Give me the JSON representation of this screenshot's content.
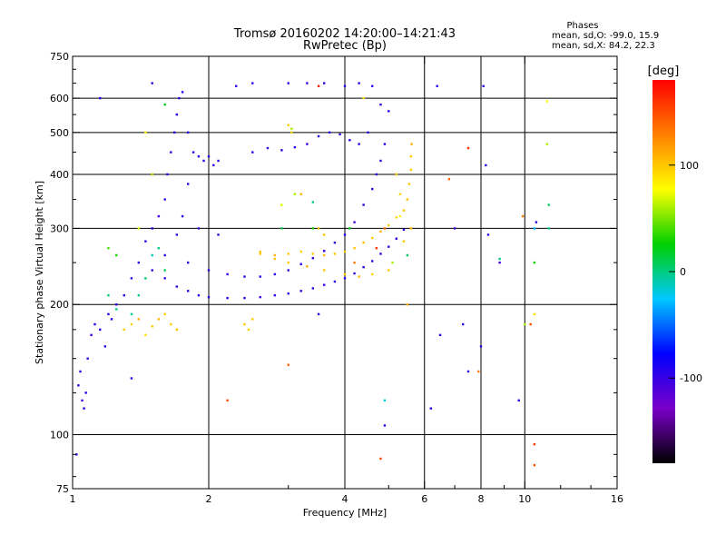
{
  "chart_data": {
    "type": "scatter",
    "title": "Tromsø 20160202 14:20:00–14:21:43",
    "subtitle": "RwPretec (Bp)",
    "xlabel": "Frequency [MHz]",
    "ylabel": "Stationary phase Virtual Height [km]",
    "x_scale": "log",
    "y_scale": "log",
    "xlim": [
      1,
      16
    ],
    "ylim": [
      75,
      750
    ],
    "x_ticks": [
      1,
      2,
      4,
      6,
      8,
      10,
      16
    ],
    "y_ticks": [
      75,
      100,
      200,
      300,
      400,
      500,
      600,
      750
    ],
    "x_gridlines": [
      2,
      4,
      6,
      8,
      10
    ],
    "y_gridlines": [
      100,
      200,
      300,
      400,
      500,
      600
    ],
    "stats": {
      "heading": "Phases",
      "line1": "mean, sd,O:  -99.0, 15.9",
      "line2": "mean, sd,X:   84.2, 22.3"
    },
    "colorbar": {
      "label": "[deg]",
      "min": -180,
      "max": 180,
      "ticks": [
        -100,
        0,
        100
      ],
      "colors": [
        "#000000",
        "#7a00c8",
        "#0000ff",
        "#00c8ff",
        "#00d000",
        "#ffff00",
        "#ff8000",
        "#ff0000"
      ]
    },
    "series": [
      {
        "points": [
          [
            1.03,
            130,
            -100
          ],
          [
            1.04,
            140,
            -98
          ],
          [
            1.05,
            120,
            -105
          ],
          [
            1.06,
            115,
            -100
          ],
          [
            1.07,
            125,
            -95
          ],
          [
            1.08,
            150,
            -100
          ],
          [
            1.1,
            170,
            -102
          ],
          [
            1.12,
            180,
            -99
          ],
          [
            1.15,
            175,
            -97
          ],
          [
            1.18,
            160,
            -100
          ],
          [
            1.2,
            190,
            -100
          ],
          [
            1.22,
            185,
            -96
          ],
          [
            1.25,
            200,
            -101
          ],
          [
            1.3,
            210,
            -100
          ],
          [
            1.35,
            230,
            -99
          ],
          [
            1.4,
            250,
            -100
          ],
          [
            1.45,
            280,
            -98
          ],
          [
            1.5,
            300,
            -100
          ],
          [
            1.55,
            320,
            -101
          ],
          [
            1.6,
            350,
            -100
          ],
          [
            1.62,
            400,
            -99
          ],
          [
            1.65,
            450,
            -100
          ],
          [
            1.68,
            500,
            -102
          ],
          [
            1.7,
            550,
            -98
          ],
          [
            1.72,
            600,
            -100
          ],
          [
            1.75,
            620,
            -100
          ],
          [
            1.8,
            500,
            -99
          ],
          [
            1.85,
            450,
            -101
          ],
          [
            1.9,
            440,
            -100
          ],
          [
            1.95,
            430,
            -97
          ],
          [
            2.0,
            440,
            -100
          ],
          [
            2.05,
            420,
            -100
          ],
          [
            2.1,
            430,
            -99
          ],
          [
            1.5,
            240,
            -100
          ],
          [
            1.6,
            230,
            -101
          ],
          [
            1.7,
            220,
            -100
          ],
          [
            1.8,
            215,
            -98
          ],
          [
            1.9,
            210,
            -100
          ],
          [
            2.0,
            208,
            -100
          ],
          [
            2.2,
            207,
            -99
          ],
          [
            2.4,
            207,
            -100
          ],
          [
            2.6,
            208,
            -101
          ],
          [
            2.8,
            210,
            -100
          ],
          [
            3.0,
            212,
            -99
          ],
          [
            3.2,
            215,
            -100
          ],
          [
            3.4,
            218,
            -100
          ],
          [
            3.6,
            222,
            -102
          ],
          [
            3.8,
            226,
            -100
          ],
          [
            4.0,
            230,
            -99
          ],
          [
            4.2,
            236,
            -100
          ],
          [
            4.4,
            244,
            -100
          ],
          [
            4.6,
            252,
            -101
          ],
          [
            4.8,
            262,
            -100
          ],
          [
            5.0,
            272,
            -98
          ],
          [
            5.2,
            284,
            -100
          ],
          [
            5.4,
            298,
            -100
          ],
          [
            1.6,
            260,
            -100
          ],
          [
            1.8,
            250,
            -99
          ],
          [
            2.0,
            240,
            -100
          ],
          [
            2.2,
            235,
            -101
          ],
          [
            2.4,
            232,
            -100
          ],
          [
            2.6,
            232,
            -100
          ],
          [
            2.8,
            235,
            -99
          ],
          [
            3.0,
            240,
            -100
          ],
          [
            3.2,
            248,
            -100
          ],
          [
            3.4,
            256,
            -100
          ],
          [
            3.6,
            266,
            -99
          ],
          [
            3.8,
            278,
            -100
          ],
          [
            4.0,
            290,
            -100
          ],
          [
            4.2,
            310,
            -101
          ],
          [
            4.4,
            340,
            -100
          ],
          [
            4.6,
            370,
            -99
          ],
          [
            4.7,
            400,
            -100
          ],
          [
            4.8,
            430,
            -100
          ],
          [
            4.9,
            470,
            -98
          ],
          [
            2.5,
            450,
            -100
          ],
          [
            2.7,
            460,
            -100
          ],
          [
            2.9,
            455,
            -99
          ],
          [
            3.1,
            462,
            -100
          ],
          [
            3.3,
            470,
            -101
          ],
          [
            3.5,
            490,
            -100
          ],
          [
            3.7,
            500,
            -99
          ],
          [
            3.9,
            495,
            -100
          ],
          [
            4.1,
            480,
            -100
          ],
          [
            4.3,
            470,
            -100
          ],
          [
            4.5,
            500,
            -99
          ],
          [
            3.0,
            650,
            -100
          ],
          [
            3.3,
            650,
            -101
          ],
          [
            3.6,
            650,
            -100
          ],
          [
            4.0,
            640,
            -100
          ],
          [
            4.3,
            650,
            -99
          ],
          [
            4.6,
            640,
            -100
          ],
          [
            1.15,
            600,
            -100
          ],
          [
            1.5,
            650,
            -99
          ],
          [
            2.5,
            650,
            -100
          ],
          [
            1.02,
            90,
            -100
          ],
          [
            4.9,
            105,
            -99
          ],
          [
            6.2,
            115,
            -100
          ],
          [
            6.5,
            170,
            -100
          ],
          [
            7.0,
            300,
            -101
          ],
          [
            7.3,
            180,
            -100
          ],
          [
            7.5,
            140,
            -99
          ],
          [
            8.0,
            160,
            -100
          ],
          [
            8.3,
            290,
            -100
          ],
          [
            8.2,
            420,
            -98
          ],
          [
            8.1,
            640,
            -100
          ],
          [
            9.7,
            120,
            -100
          ],
          [
            10.6,
            310,
            -99
          ],
          [
            3.5,
            190,
            -100
          ],
          [
            1.35,
            135,
            -100
          ],
          [
            1.7,
            290,
            -99
          ],
          [
            1.75,
            320,
            -100
          ],
          [
            1.9,
            300,
            -100
          ],
          [
            2.1,
            290,
            -101
          ],
          [
            1.8,
            380,
            -100
          ],
          [
            2.3,
            640,
            -100
          ],
          [
            6.4,
            640,
            -99
          ],
          [
            4.8,
            580,
            -100
          ],
          [
            5.0,
            560,
            -100
          ],
          [
            8.8,
            250,
            -101
          ]
        ]
      },
      {
        "points": [
          [
            1.3,
            175,
            100
          ],
          [
            1.35,
            180,
            95
          ],
          [
            1.4,
            185,
            110
          ],
          [
            1.45,
            170,
            90
          ],
          [
            1.5,
            178,
            100
          ],
          [
            1.55,
            185,
            105
          ],
          [
            1.6,
            190,
            100
          ],
          [
            1.65,
            180,
            98
          ],
          [
            1.7,
            175,
            102
          ],
          [
            2.4,
            180,
            100
          ],
          [
            2.45,
            175,
            95
          ],
          [
            2.5,
            185,
            100
          ],
          [
            2.6,
            265,
            100
          ],
          [
            2.8,
            260,
            110
          ],
          [
            3.0,
            262,
            100
          ],
          [
            3.2,
            265,
            95
          ],
          [
            3.4,
            262,
            100
          ],
          [
            3.6,
            260,
            105
          ],
          [
            3.8,
            262,
            100
          ],
          [
            4.0,
            265,
            98
          ],
          [
            4.2,
            270,
            100
          ],
          [
            4.4,
            278,
            102
          ],
          [
            4.6,
            285,
            100
          ],
          [
            4.8,
            295,
            110
          ],
          [
            5.0,
            305,
            100
          ],
          [
            5.2,
            318,
            95
          ],
          [
            5.4,
            330,
            100
          ],
          [
            5.5,
            350,
            105
          ],
          [
            5.55,
            380,
            100
          ],
          [
            5.6,
            410,
            100
          ],
          [
            5.6,
            440,
            98
          ],
          [
            5.62,
            470,
            110
          ],
          [
            5.0,
            240,
            100
          ],
          [
            4.6,
            235,
            95
          ],
          [
            4.3,
            232,
            105
          ],
          [
            4.0,
            235,
            100
          ],
          [
            3.6,
            240,
            100
          ],
          [
            3.3,
            245,
            110
          ],
          [
            3.0,
            250,
            98
          ],
          [
            2.8,
            255,
            100
          ],
          [
            2.6,
            262,
            100
          ],
          [
            3.0,
            520,
            100
          ],
          [
            3.05,
            500,
            95
          ],
          [
            3.2,
            360,
            110
          ],
          [
            3.5,
            300,
            100
          ],
          [
            3.6,
            290,
            100
          ],
          [
            5.3,
            360,
            95
          ],
          [
            5.2,
            400,
            100
          ],
          [
            5.6,
            300,
            105
          ],
          [
            5.4,
            280,
            100
          ],
          [
            5.5,
            200,
            110
          ],
          [
            7.5,
            460,
            160
          ],
          [
            7.9,
            140,
            130
          ],
          [
            6.8,
            390,
            140
          ],
          [
            10.5,
            85,
            150
          ],
          [
            10.5,
            95,
            160
          ],
          [
            9.9,
            320,
            130
          ],
          [
            11.2,
            590,
            80
          ],
          [
            11.2,
            470,
            60
          ],
          [
            10.5,
            190,
            90
          ],
          [
            10.3,
            180,
            150
          ],
          [
            4.8,
            88,
            150
          ],
          [
            3.5,
            640,
            170
          ],
          [
            3.05,
            510,
            60
          ],
          [
            5.3,
            320,
            80
          ],
          [
            5.1,
            250,
            60
          ],
          [
            4.7,
            270,
            160
          ],
          [
            4.2,
            250,
            130
          ],
          [
            4.4,
            600,
            90
          ],
          [
            2.9,
            340,
            70
          ],
          [
            1.5,
            400,
            60
          ],
          [
            1.4,
            300,
            70
          ],
          [
            1.2,
            270,
            40
          ],
          [
            1.25,
            260,
            30
          ],
          [
            1.6,
            580,
            20
          ],
          [
            1.45,
            500,
            80
          ],
          [
            3.1,
            360,
            60
          ],
          [
            3.4,
            300,
            30
          ],
          [
            4.9,
            300,
            140
          ],
          [
            5.5,
            260,
            90
          ],
          [
            2.2,
            120,
            150
          ],
          [
            3.0,
            145,
            140
          ],
          [
            10.0,
            180,
            60
          ]
        ]
      },
      {
        "points": [
          [
            1.4,
            210,
            0
          ],
          [
            1.45,
            230,
            5
          ],
          [
            1.5,
            260,
            -10
          ],
          [
            1.55,
            270,
            0
          ],
          [
            1.6,
            240,
            10
          ],
          [
            1.35,
            190,
            -5
          ],
          [
            1.25,
            195,
            0
          ],
          [
            1.2,
            210,
            5
          ],
          [
            3.4,
            345,
            0
          ],
          [
            2.9,
            300,
            10
          ],
          [
            8.8,
            255,
            0
          ],
          [
            11.3,
            340,
            5
          ],
          [
            11.3,
            300,
            0
          ],
          [
            10.5,
            250,
            30
          ],
          [
            10.5,
            300,
            -30
          ],
          [
            5.5,
            260,
            0
          ],
          [
            4.1,
            300,
            20
          ],
          [
            4.9,
            120,
            -20
          ]
        ]
      }
    ]
  }
}
